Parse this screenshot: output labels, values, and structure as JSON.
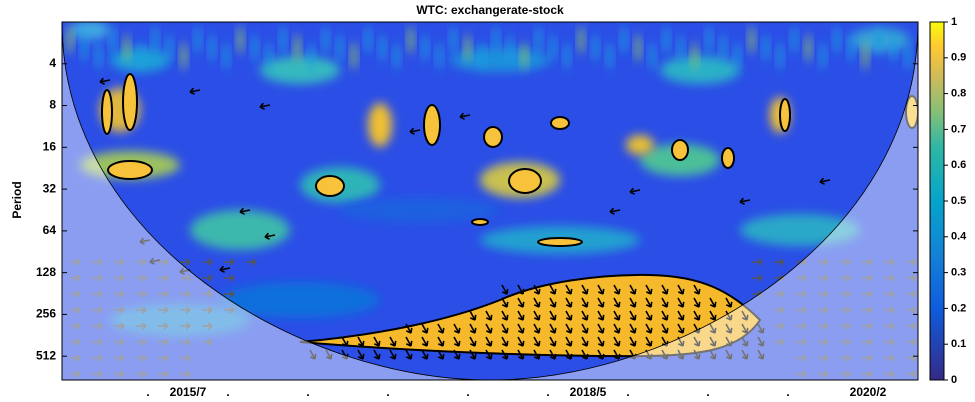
{
  "chart_data": {
    "type": "heatmap",
    "title": "WTC: exchangerate-stock",
    "ylabel": "Period",
    "ylim": [
      2,
      760
    ],
    "log_scale": true,
    "y_reversed": true,
    "yticks": [
      4,
      8,
      16,
      32,
      64,
      128,
      256,
      512
    ],
    "categories": [
      ".",
      "2015/7",
      ".",
      null,
      ".",
      null,
      ".",
      null,
      ".",
      null,
      ".",
      "2018/5",
      ".",
      null,
      ".",
      null,
      ".",
      null,
      "2020/2"
    ],
    "colorbar": {
      "lim": [
        0,
        1
      ],
      "ticks": [
        0,
        0.1,
        0.2,
        0.3,
        0.4,
        0.5,
        0.6,
        0.7,
        0.8,
        0.9,
        1
      ]
    }
  }
}
